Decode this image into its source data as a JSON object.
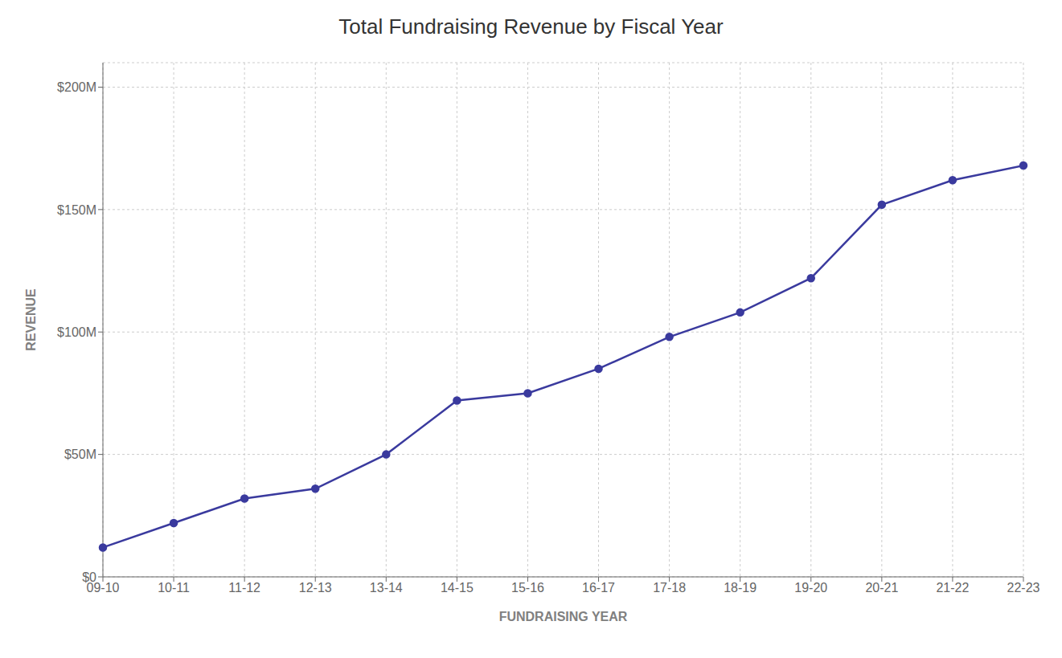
{
  "chart_data": {
    "type": "line",
    "title": "Total Fundraising Revenue by Fiscal Year",
    "xlabel": "FUNDRAISING YEAR",
    "ylabel": "REVENUE",
    "categories": [
      "09-10",
      "10-11",
      "11-12",
      "12-13",
      "13-14",
      "14-15",
      "15-16",
      "16-17",
      "17-18",
      "18-19",
      "19-20",
      "20-21",
      "21-22",
      "22-23"
    ],
    "values": [
      12,
      22,
      32,
      36,
      50,
      72,
      75,
      85,
      98,
      108,
      122,
      152,
      162,
      168
    ],
    "color": "#3a3a9e",
    "marker": "circle",
    "ylim": [
      0,
      210
    ],
    "yticks": [
      {
        "value": 0,
        "label": "$0"
      },
      {
        "value": 50,
        "label": "$50M"
      },
      {
        "value": 100,
        "label": "$100M"
      },
      {
        "value": 150,
        "label": "$150M"
      },
      {
        "value": 200,
        "label": "$200M"
      }
    ],
    "grid": true
  }
}
